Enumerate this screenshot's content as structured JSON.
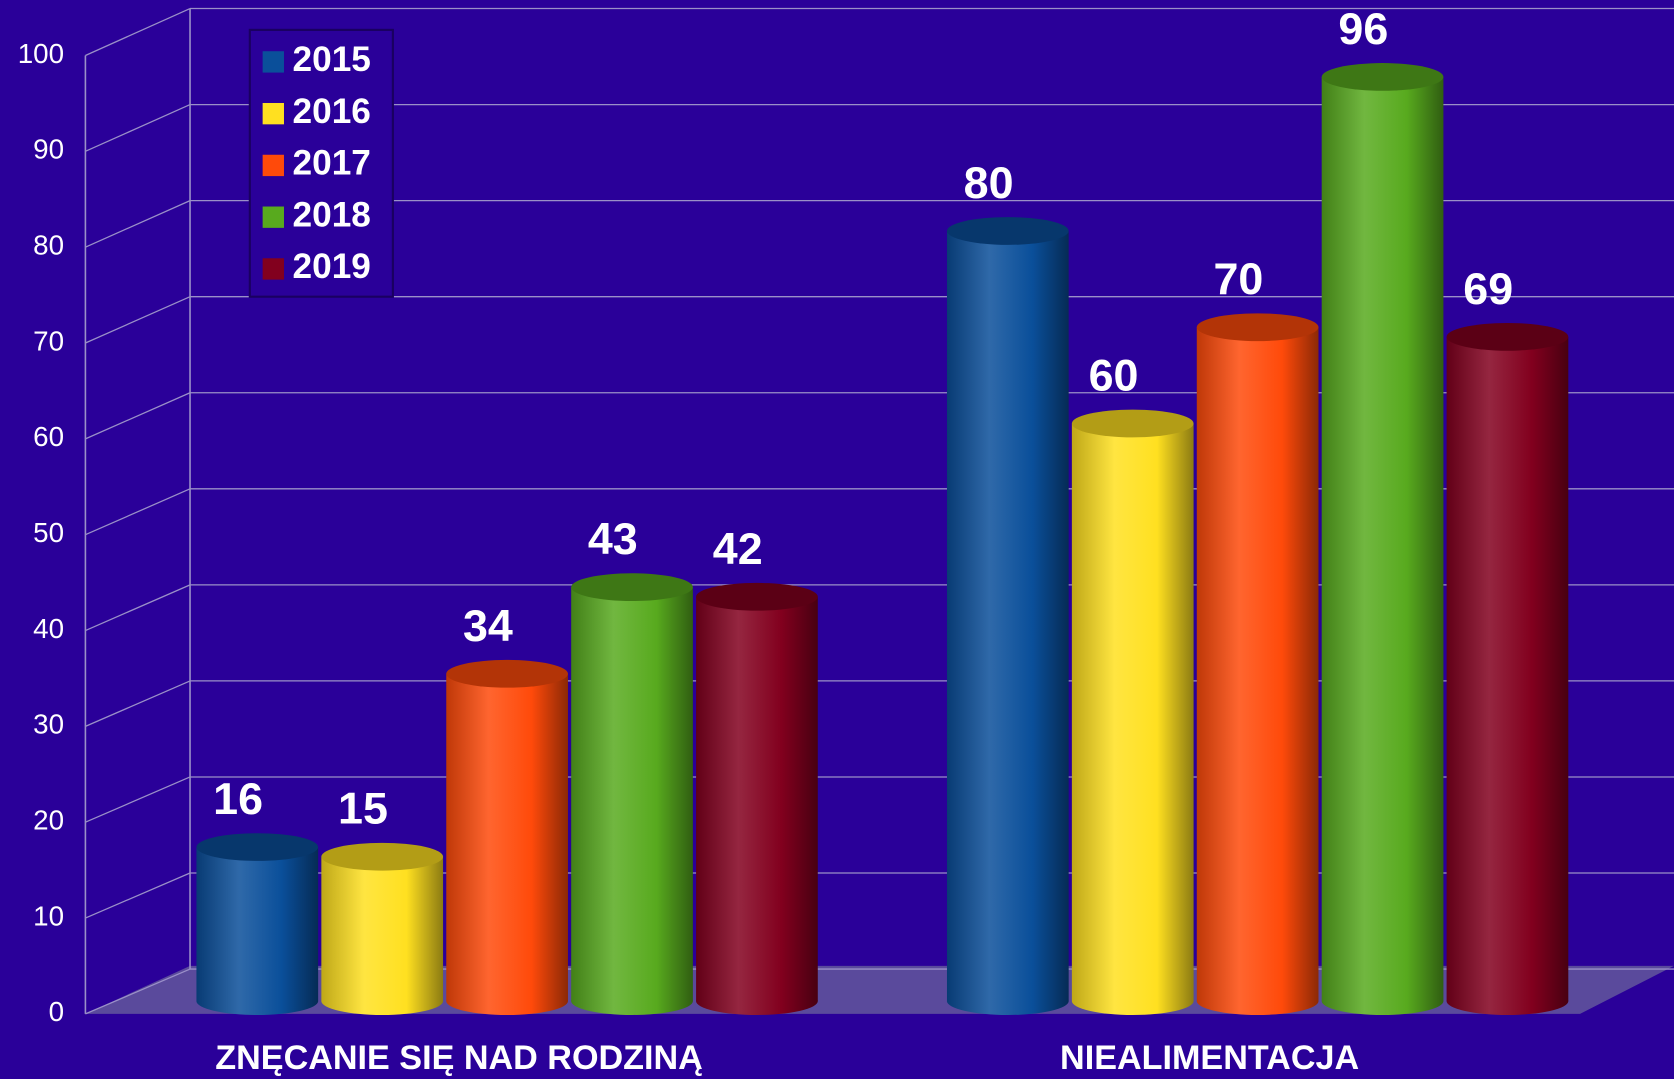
{
  "chart_data": {
    "type": "bar",
    "categories": [
      "ZNĘCANIE SIĘ NAD RODZINĄ",
      "NIEALIMENTACJA"
    ],
    "series": [
      {
        "name": "2015",
        "color": "#0a4f9a",
        "values": [
          16,
          80
        ]
      },
      {
        "name": "2016",
        "color": "#ffe020",
        "values": [
          15,
          60
        ]
      },
      {
        "name": "2017",
        "color": "#ff4a0a",
        "values": [
          34,
          70
        ]
      },
      {
        "name": "2018",
        "color": "#58aa1e",
        "values": [
          43,
          96
        ]
      },
      {
        "name": "2019",
        "color": "#82001e",
        "values": [
          42,
          69
        ]
      }
    ],
    "ylim": [
      0,
      100
    ],
    "yticks": [
      0,
      10,
      20,
      30,
      40,
      50,
      60,
      70,
      80,
      90,
      100
    ],
    "grid": true,
    "legend": "top-left"
  }
}
